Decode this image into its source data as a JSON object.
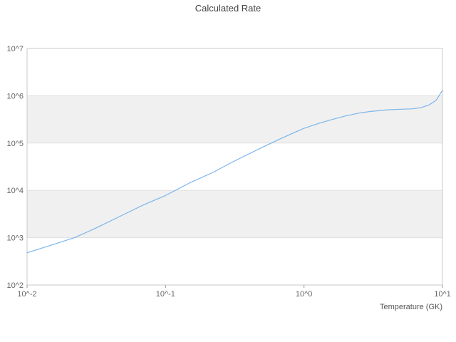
{
  "chart_data": {
    "type": "line",
    "title": "Calculated Rate",
    "xlabel": "Temperature (GK)",
    "ylabel": "",
    "x_scale": "log",
    "y_scale": "log",
    "xlim": [
      0.01,
      10
    ],
    "ylim": [
      100,
      10000000
    ],
    "x_tick_exponents": [
      -2,
      -1,
      0,
      1
    ],
    "x_tick_labels": [
      "10^-2",
      "10^-1",
      "10^0",
      "10^1"
    ],
    "y_tick_exponents": [
      2,
      3,
      4,
      5,
      6,
      7
    ],
    "y_tick_labels": [
      "10^2",
      "10^3",
      "10^4",
      "10^5",
      "10^6",
      "10^7"
    ],
    "grid": true,
    "banded_background": true,
    "legend_position": "none",
    "colors": {
      "line": "#7cb5ec",
      "band": "#f0f0f0",
      "grid": "#e0e0e0",
      "border": "#c9c9c9",
      "tick": "#999999",
      "tick_text": "#666666",
      "title_text": "#3f3f3f"
    },
    "series": [
      {
        "name": "Calculated Rate",
        "x": [
          0.01,
          0.015,
          0.022,
          0.03,
          0.05,
          0.07,
          0.1,
          0.15,
          0.22,
          0.3,
          0.45,
          0.6,
          0.8,
          1.0,
          1.3,
          1.6,
          2.0,
          2.5,
          3.0,
          4.0,
          5.0,
          6.0,
          7.0,
          8.0,
          9.0,
          10.0
        ],
        "y": [
          480,
          700,
          1000,
          1500,
          3100,
          5000,
          7800,
          14500,
          24000,
          39000,
          70000,
          105000,
          154000,
          205000,
          265000,
          315000,
          375000,
          430000,
          465000,
          505000,
          520000,
          528000,
          560000,
          640000,
          800000,
          1300000
        ]
      }
    ]
  }
}
